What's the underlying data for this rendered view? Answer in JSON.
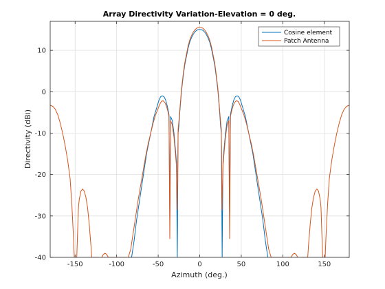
{
  "chart_data": {
    "type": "line",
    "title": "Array Directivity Variation-Elevation  = 0 deg.",
    "xlabel": "Azimuth (deg.)",
    "ylabel": "Directivity (dBi)",
    "xlim": [
      -180,
      180
    ],
    "ylim": [
      -40,
      17
    ],
    "xticks": [
      -150,
      -100,
      -50,
      0,
      50,
      100,
      150
    ],
    "yticks": [
      -40,
      -30,
      -20,
      -10,
      0,
      10
    ],
    "grid": true,
    "legend_position": "top-right",
    "series": [
      {
        "name": "Cosine element",
        "color": "#0072BD",
        "points": [
          [
            -90,
            -40
          ],
          [
            -85,
            -40
          ],
          [
            -82,
            -40
          ],
          [
            -79,
            -36
          ],
          [
            -76,
            -31
          ],
          [
            -73,
            -27
          ],
          [
            -70,
            -23
          ],
          [
            -67,
            -19
          ],
          [
            -64,
            -15
          ],
          [
            -61,
            -12
          ],
          [
            -58,
            -9
          ],
          [
            -55,
            -6
          ],
          [
            -52,
            -4
          ],
          [
            -49,
            -2
          ],
          [
            -47,
            -1.2
          ],
          [
            -45,
            -1
          ],
          [
            -43,
            -1.2
          ],
          [
            -41,
            -2
          ],
          [
            -39,
            -3.5
          ],
          [
            -37,
            -5.5
          ],
          [
            -36,
            -31
          ],
          [
            -35,
            -6
          ],
          [
            -33,
            -7
          ],
          [
            -31,
            -10
          ],
          [
            -29,
            -14.5
          ],
          [
            -28,
            -17
          ],
          [
            -27,
            -40
          ],
          [
            -26,
            -10
          ],
          [
            -25,
            -8
          ],
          [
            -24,
            -5
          ],
          [
            -22,
            0
          ],
          [
            -20,
            3.5
          ],
          [
            -18,
            6.5
          ],
          [
            -16,
            8.5
          ],
          [
            -14,
            10.5
          ],
          [
            -12,
            12
          ],
          [
            -10,
            13
          ],
          [
            -8,
            13.8
          ],
          [
            -6,
            14.4
          ],
          [
            -4,
            14.8
          ],
          [
            -2,
            15
          ],
          [
            0,
            15
          ],
          [
            2,
            15
          ],
          [
            4,
            14.8
          ],
          [
            6,
            14.4
          ],
          [
            8,
            13.8
          ],
          [
            10,
            13
          ],
          [
            12,
            12
          ],
          [
            14,
            10.5
          ],
          [
            16,
            8.5
          ],
          [
            18,
            6.5
          ],
          [
            20,
            3.5
          ],
          [
            22,
            0
          ],
          [
            24,
            -5
          ],
          [
            25,
            -8
          ],
          [
            26,
            -10
          ],
          [
            27,
            -40
          ],
          [
            28,
            -17
          ],
          [
            29,
            -14.5
          ],
          [
            31,
            -10
          ],
          [
            33,
            -7
          ],
          [
            35,
            -6
          ],
          [
            36,
            -31
          ],
          [
            37,
            -5.5
          ],
          [
            39,
            -3.5
          ],
          [
            41,
            -2
          ],
          [
            43,
            -1.2
          ],
          [
            45,
            -1
          ],
          [
            47,
            -1.2
          ],
          [
            49,
            -2
          ],
          [
            52,
            -4
          ],
          [
            55,
            -6
          ],
          [
            58,
            -9
          ],
          [
            61,
            -12
          ],
          [
            64,
            -15
          ],
          [
            67,
            -19
          ],
          [
            70,
            -23
          ],
          [
            73,
            -27
          ],
          [
            76,
            -31
          ],
          [
            79,
            -36
          ],
          [
            82,
            -40
          ],
          [
            85,
            -40
          ],
          [
            90,
            -40
          ]
        ]
      },
      {
        "name": "Patch Antenna",
        "color": "#D95319",
        "points": [
          [
            -180,
            -3.3
          ],
          [
            -177,
            -3.5
          ],
          [
            -174,
            -4.2
          ],
          [
            -171,
            -5.5
          ],
          [
            -168,
            -7.5
          ],
          [
            -165,
            -10
          ],
          [
            -162,
            -13
          ],
          [
            -159,
            -16.5
          ],
          [
            -156,
            -21
          ],
          [
            -154,
            -27
          ],
          [
            -152,
            -35
          ],
          [
            -151,
            -40
          ],
          [
            -148,
            -40
          ],
          [
            -146,
            -28
          ],
          [
            -145,
            -26
          ],
          [
            -143,
            -24
          ],
          [
            -141,
            -23.5
          ],
          [
            -139,
            -24
          ],
          [
            -137,
            -25.5
          ],
          [
            -135,
            -28
          ],
          [
            -133,
            -32
          ],
          [
            -131,
            -37
          ],
          [
            -130,
            -40
          ],
          [
            -122,
            -40
          ],
          [
            -120,
            -40.5
          ],
          [
            -118,
            -40
          ],
          [
            -116,
            -39.3
          ],
          [
            -114,
            -39
          ],
          [
            -112,
            -39.3
          ],
          [
            -110,
            -40
          ],
          [
            -108,
            -40
          ],
          [
            -86,
            -40
          ],
          [
            -83,
            -38
          ],
          [
            -80,
            -34
          ],
          [
            -77,
            -30
          ],
          [
            -74,
            -26
          ],
          [
            -71,
            -22.5
          ],
          [
            -68,
            -19
          ],
          [
            -65,
            -15.5
          ],
          [
            -62,
            -12.5
          ],
          [
            -59,
            -10
          ],
          [
            -56,
            -7.5
          ],
          [
            -53,
            -5.5
          ],
          [
            -50,
            -4
          ],
          [
            -48,
            -3
          ],
          [
            -46,
            -2.3
          ],
          [
            -44,
            -2.2
          ],
          [
            -42,
            -2.6
          ],
          [
            -40,
            -3.5
          ],
          [
            -38,
            -5
          ],
          [
            -37,
            -6
          ],
          [
            -36,
            -35.5
          ],
          [
            -35,
            -7
          ],
          [
            -33,
            -8
          ],
          [
            -31,
            -11
          ],
          [
            -29,
            -15.5
          ],
          [
            -28,
            -18
          ],
          [
            -27,
            -28.5
          ],
          [
            -26,
            -9
          ],
          [
            -25,
            -7
          ],
          [
            -24,
            -4.5
          ],
          [
            -22,
            0.5
          ],
          [
            -20,
            4
          ],
          [
            -18,
            7
          ],
          [
            -16,
            9
          ],
          [
            -14,
            11
          ],
          [
            -12,
            12.5
          ],
          [
            -10,
            13.5
          ],
          [
            -8,
            14.3
          ],
          [
            -6,
            14.9
          ],
          [
            -4,
            15.3
          ],
          [
            -2,
            15.5
          ],
          [
            0,
            15.5
          ],
          [
            2,
            15.5
          ],
          [
            4,
            15.3
          ],
          [
            6,
            14.9
          ],
          [
            8,
            14.3
          ],
          [
            10,
            13.5
          ],
          [
            12,
            12.5
          ],
          [
            14,
            11
          ],
          [
            16,
            9
          ],
          [
            18,
            7
          ],
          [
            20,
            4
          ],
          [
            22,
            0.5
          ],
          [
            24,
            -4.5
          ],
          [
            25,
            -7
          ],
          [
            26,
            -9
          ],
          [
            27,
            -28.5
          ],
          [
            28,
            -18
          ],
          [
            29,
            -15.5
          ],
          [
            31,
            -11
          ],
          [
            33,
            -8
          ],
          [
            35,
            -7
          ],
          [
            36,
            -35.5
          ],
          [
            37,
            -6
          ],
          [
            38,
            -5
          ],
          [
            40,
            -3.5
          ],
          [
            42,
            -2.6
          ],
          [
            44,
            -2.2
          ],
          [
            46,
            -2.3
          ],
          [
            48,
            -3
          ],
          [
            50,
            -4
          ],
          [
            53,
            -5.5
          ],
          [
            56,
            -7.5
          ],
          [
            59,
            -10
          ],
          [
            62,
            -12.5
          ],
          [
            65,
            -15.5
          ],
          [
            68,
            -19
          ],
          [
            71,
            -22.5
          ],
          [
            74,
            -26
          ],
          [
            77,
            -30
          ],
          [
            80,
            -34
          ],
          [
            83,
            -38
          ],
          [
            86,
            -40
          ],
          [
            108,
            -40
          ],
          [
            110,
            -40
          ],
          [
            112,
            -39.3
          ],
          [
            114,
            -39
          ],
          [
            116,
            -39.3
          ],
          [
            118,
            -40
          ],
          [
            120,
            -40.5
          ],
          [
            122,
            -40
          ],
          [
            130,
            -40
          ],
          [
            131,
            -37
          ],
          [
            133,
            -32
          ],
          [
            135,
            -28
          ],
          [
            137,
            -25.5
          ],
          [
            139,
            -24
          ],
          [
            141,
            -23.5
          ],
          [
            143,
            -24
          ],
          [
            145,
            -26
          ],
          [
            146,
            -28
          ],
          [
            148,
            -40
          ],
          [
            151,
            -40
          ],
          [
            152,
            -35
          ],
          [
            154,
            -27
          ],
          [
            156,
            -21
          ],
          [
            159,
            -16.5
          ],
          [
            162,
            -13
          ],
          [
            165,
            -10
          ],
          [
            168,
            -7.5
          ],
          [
            171,
            -5.5
          ],
          [
            174,
            -4.2
          ],
          [
            177,
            -3.5
          ],
          [
            180,
            -3.3
          ]
        ]
      }
    ]
  }
}
